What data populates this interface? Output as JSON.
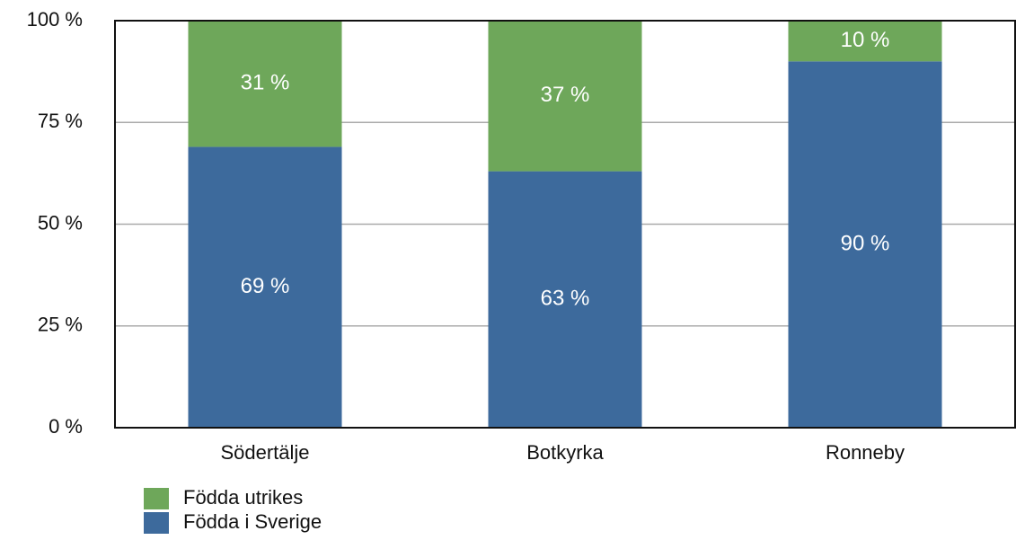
{
  "chart_data": {
    "type": "stacked_bar",
    "categories": [
      "Södertälje",
      "Botkyrka",
      "Ronneby"
    ],
    "series": [
      {
        "name": "Födda i Sverige",
        "color": "#3d6a9c",
        "values": [
          69,
          63,
          90
        ],
        "value_labels": [
          "69 %",
          "63 %",
          "90 %"
        ]
      },
      {
        "name": "Födda utrikes",
        "color": "#6ea75a",
        "values": [
          31,
          37,
          10
        ],
        "value_labels": [
          "31 %",
          "37 %",
          "10 %"
        ]
      }
    ],
    "ylim": [
      0,
      100
    ],
    "yticks": [
      {
        "value": 0,
        "label": "0 %"
      },
      {
        "value": 25,
        "label": "25 %"
      },
      {
        "value": 50,
        "label": "50 %"
      },
      {
        "value": 75,
        "label": "75 %"
      },
      {
        "value": 100,
        "label": "100 %"
      }
    ],
    "grid": true,
    "legend": "bottom-left"
  }
}
